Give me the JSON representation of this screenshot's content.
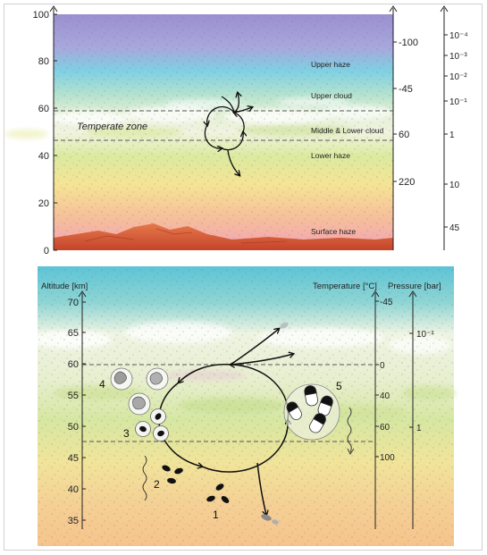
{
  "top_panel": {
    "altitude_ticks": [
      "0",
      "20",
      "40",
      "60",
      "80",
      "100"
    ],
    "temperature_ticks": [
      "-100",
      "-45",
      "60",
      "220"
    ],
    "pressure_ticks": [
      "10⁻⁴",
      "10⁻³",
      "10⁻²",
      "10⁻¹",
      "1",
      "10",
      "45"
    ],
    "zone_label": "Temperate zone",
    "layers": [
      "Upper haze",
      "Upper cloud",
      "Middle & Lower cloud",
      "Lower haze",
      "Surface haze"
    ]
  },
  "bottom_panel": {
    "altitude_label": "Altitude [km]",
    "temperature_label": "Temperature [°C]",
    "pressure_label": "Pressure [bar]",
    "altitude_ticks": [
      "35",
      "40",
      "45",
      "50",
      "55",
      "60",
      "65",
      "70"
    ],
    "temperature_ticks": [
      "-45",
      "0",
      "40",
      "60",
      "100"
    ],
    "pressure_ticks": [
      "10⁻¹",
      "1"
    ],
    "stage_numbers": [
      "1",
      "2",
      "3",
      "4",
      "5"
    ]
  },
  "colors": {
    "sky_top": "#8f8cc8",
    "sky_blue": "#7ccde0",
    "haze_green": "#d6e8a8",
    "haze_yellow": "#f3e38e",
    "haze_pink": "#f4b3b3",
    "terrain": "#d1552e"
  }
}
